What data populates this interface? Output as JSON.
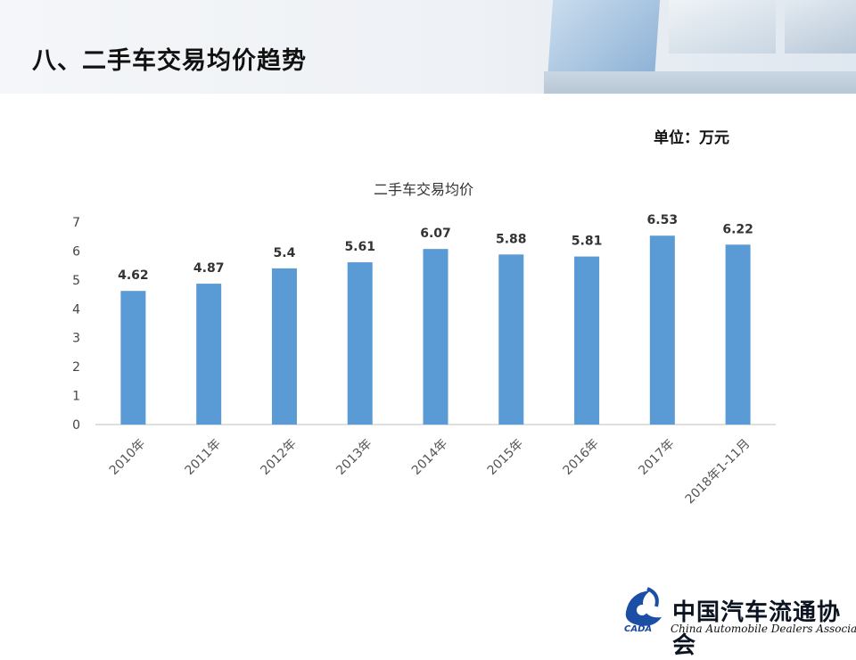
{
  "page": {
    "title": "八、二手车交易均价趋势",
    "unit_label": "单位：万元"
  },
  "chart_data": {
    "type": "bar",
    "title": "二手车交易均价",
    "categories": [
      "2010年",
      "2011年",
      "2012年",
      "2013年",
      "2014年",
      "2015年",
      "2016年",
      "2017年",
      "2018年1-11月"
    ],
    "values": [
      4.62,
      4.87,
      5.4,
      5.61,
      6.07,
      5.88,
      5.81,
      6.53,
      6.22
    ],
    "value_labels": [
      "4.62",
      "4.87",
      "5.4",
      "5.61",
      "6.07",
      "5.88",
      "5.81",
      "6.53",
      "6.22"
    ],
    "yticks": [
      "0",
      "1",
      "2",
      "3",
      "4",
      "5",
      "6",
      "7"
    ],
    "ylim": [
      0,
      7
    ],
    "xlabel": "",
    "ylabel": "",
    "grid": false,
    "bar_color": "#5b9bd5"
  },
  "logo": {
    "chinese_name": "中国汽车流通协会",
    "english_name": "China Automobile Dealers Association",
    "abbreviation": "CADA"
  }
}
